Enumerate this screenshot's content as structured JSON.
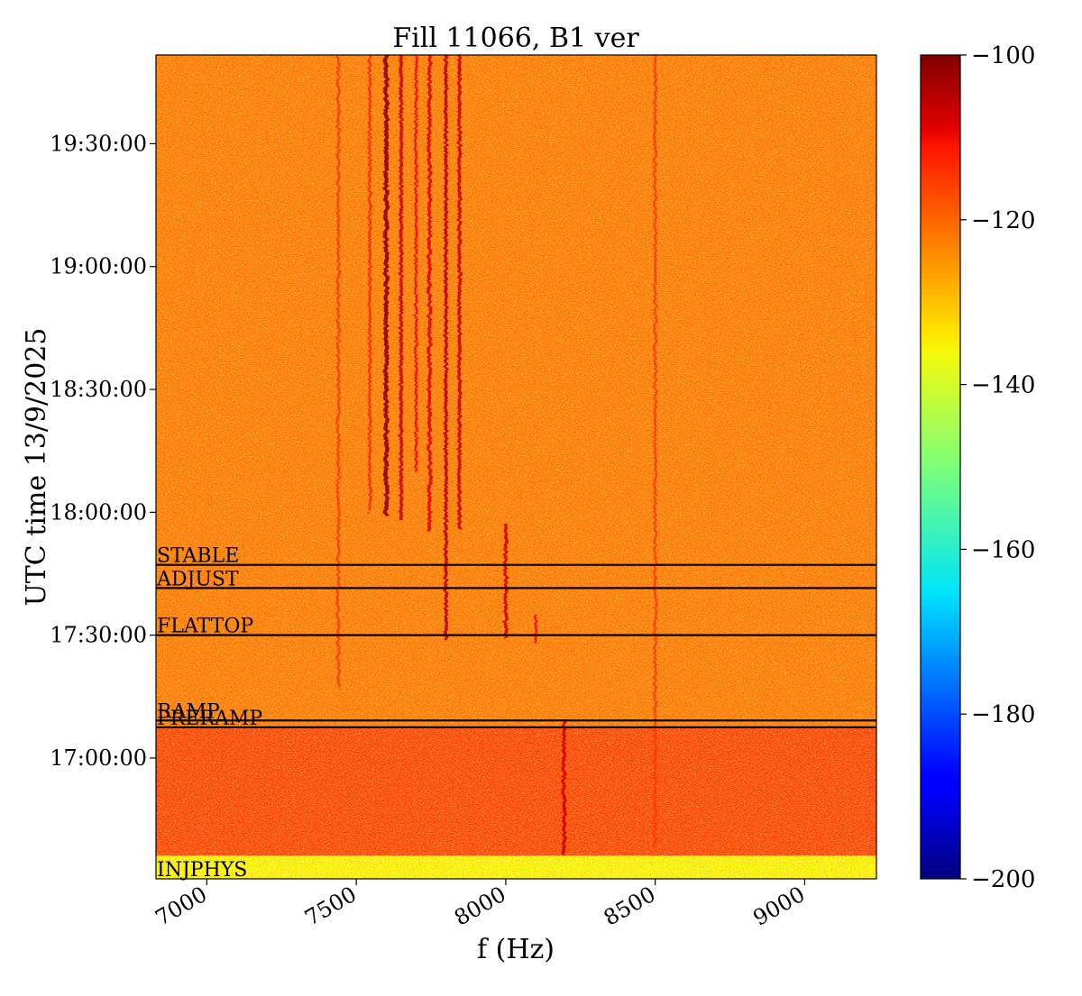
{
  "chart_data": {
    "type": "heatmap",
    "title": "Fill 11066, B1 ver",
    "xlabel": "f (Hz)",
    "ylabel": "UTC time 13/9/2025",
    "xlim": [
      6830,
      9240
    ],
    "ylim_time": [
      "16:30:30",
      "19:51:40"
    ],
    "x_ticks": [
      {
        "value": 7000,
        "label": "7000"
      },
      {
        "value": 7500,
        "label": "7500"
      },
      {
        "value": 8000,
        "label": "8000"
      },
      {
        "value": 8500,
        "label": "8500"
      },
      {
        "value": 9000,
        "label": "9000"
      }
    ],
    "y_ticks": [
      {
        "value": "17:00:00",
        "label": "17:00:00"
      },
      {
        "value": "17:30:00",
        "label": "17:30:00"
      },
      {
        "value": "18:00:00",
        "label": "18:00:00"
      },
      {
        "value": "18:30:00",
        "label": "18:30:00"
      },
      {
        "value": "19:00:00",
        "label": "19:00:00"
      },
      {
        "value": "19:30:00",
        "label": "19:30:00"
      }
    ],
    "colorbar": {
      "colormap": "jet",
      "range": [
        -200,
        -100
      ],
      "ticks": [
        {
          "value": -100,
          "label": "−100"
        },
        {
          "value": -120,
          "label": "−120"
        },
        {
          "value": -140,
          "label": "−140"
        },
        {
          "value": -160,
          "label": "−160"
        },
        {
          "value": -180,
          "label": "−180"
        },
        {
          "value": -200,
          "label": "−200"
        }
      ]
    },
    "phases": [
      {
        "name": "INJPHYS",
        "time": "16:30:30"
      },
      {
        "name": "PRERAMP",
        "time": "17:07:30"
      },
      {
        "name": "RAMP",
        "time": "17:09:10"
      },
      {
        "name": "FLATTOP",
        "time": "17:30:00"
      },
      {
        "name": "ADJUST",
        "time": "17:41:30"
      },
      {
        "name": "STABLE",
        "time": "17:47:10"
      }
    ],
    "background_levels": [
      {
        "from": "16:30:30",
        "to": "16:36:10",
        "level": -138
      },
      {
        "from": "16:36:10",
        "to": "17:07:30",
        "level": -118
      },
      {
        "from": "17:07:30",
        "to": "19:51:40",
        "level": -124
      }
    ],
    "spectral_lines": [
      {
        "freq": 7440,
        "from": "17:17:00",
        "to": "19:51:40",
        "level": -118
      },
      {
        "freq": 7545,
        "from": "18:00:00",
        "to": "19:51:40",
        "level": -116
      },
      {
        "freq": 7600,
        "from": "17:59:00",
        "to": "19:51:40",
        "level": -102
      },
      {
        "freq": 7650,
        "from": "17:58:00",
        "to": "19:51:40",
        "level": -108
      },
      {
        "freq": 7700,
        "from": "18:10:00",
        "to": "19:51:40",
        "level": -112
      },
      {
        "freq": 7745,
        "from": "17:55:00",
        "to": "19:51:40",
        "level": -110
      },
      {
        "freq": 7800,
        "from": "17:29:00",
        "to": "19:51:40",
        "level": -106
      },
      {
        "freq": 7845,
        "from": "17:56:00",
        "to": "19:51:40",
        "level": -108
      },
      {
        "freq": 8000,
        "from": "17:29:00",
        "to": "17:57:00",
        "level": -108
      },
      {
        "freq": 8100,
        "from": "17:28:00",
        "to": "17:35:00",
        "level": -112
      },
      {
        "freq": 8195,
        "from": "16:36:00",
        "to": "17:09:00",
        "level": -108
      },
      {
        "freq": 8500,
        "from": "16:38:00",
        "to": "19:51:40",
        "level": -118
      }
    ]
  }
}
